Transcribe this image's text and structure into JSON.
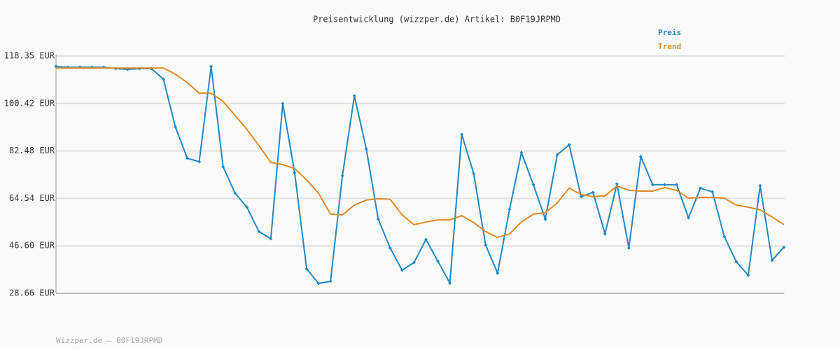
{
  "chart_data": {
    "type": "line",
    "title": "Preisentwicklung (wizzper.de) Artikel: B0F19JRPMD",
    "footer": "Wizzper.de – B0F19JRPMD",
    "ylim": [
      28.66,
      118.35
    ],
    "yticks": [
      {
        "value": 28.66,
        "label": "28.66 EUR"
      },
      {
        "value": 46.6,
        "label": "46.60 EUR"
      },
      {
        "value": 64.54,
        "label": "64.54 EUR"
      },
      {
        "value": 82.48,
        "label": "82.48 EUR"
      },
      {
        "value": 100.42,
        "label": "100.42 EUR"
      },
      {
        "value": 118.35,
        "label": "118.35 EUR"
      }
    ],
    "grid": true,
    "legend": "top-right",
    "series": [
      {
        "name": "Preis",
        "color": "#1f88c4",
        "markers": true,
        "values": [
          114.4,
          114.1,
          114.1,
          114.1,
          114.1,
          113.6,
          113.3,
          113.6,
          113.6,
          109.6,
          91.6,
          79.7,
          78.4,
          114.4,
          76.5,
          66.5,
          61.2,
          52.0,
          49.3,
          100.4,
          74.2,
          37.9,
          32.4,
          33.2,
          73.1,
          103.3,
          83.2,
          56.7,
          45.8,
          37.4,
          40.3,
          49.0,
          40.8,
          32.5,
          88.7,
          73.9,
          46.9,
          36.3,
          60.4,
          81.8,
          69.7,
          56.7,
          81.0,
          84.8,
          65.2,
          66.8,
          51.1,
          70.0,
          45.8,
          80.3,
          69.7,
          69.7,
          69.7,
          57.2,
          68.4,
          67.0,
          50.1,
          40.6,
          35.5,
          69.4,
          41.1,
          46.1
        ]
      },
      {
        "name": "Trend",
        "color": "#e08a25",
        "markers": false,
        "values": [
          113.8,
          113.8,
          113.8,
          113.8,
          113.8,
          113.8,
          113.8,
          113.8,
          113.8,
          113.8,
          111.5,
          108.3,
          104.3,
          104.3,
          101.2,
          95.9,
          90.6,
          84.5,
          78.1,
          77.3,
          75.8,
          71.5,
          66.5,
          58.6,
          58.3,
          62.0,
          63.9,
          64.4,
          64.2,
          58.3,
          54.6,
          55.6,
          56.4,
          56.4,
          58.0,
          55.4,
          52.0,
          49.8,
          51.1,
          55.6,
          58.6,
          59.1,
          62.8,
          68.4,
          66.0,
          65.2,
          65.5,
          69.2,
          67.6,
          67.3,
          67.3,
          68.6,
          67.6,
          64.6,
          64.9,
          64.9,
          64.6,
          62.0,
          61.2,
          60.2,
          57.5,
          54.6
        ]
      }
    ]
  }
}
